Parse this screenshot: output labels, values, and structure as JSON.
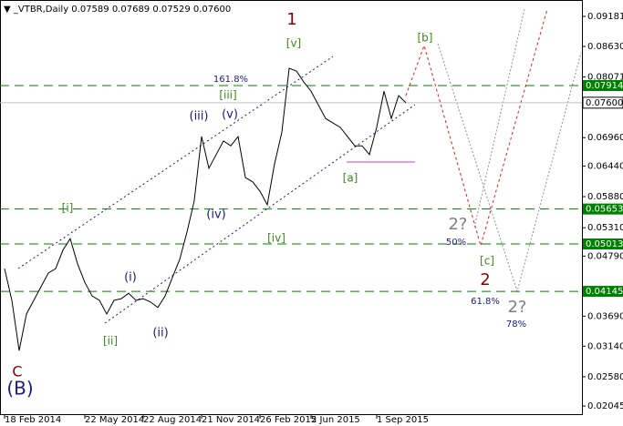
{
  "chart_data": {
    "type": "line",
    "title": "▼ _VTBR,Daily  0.07589 0.07689 0.07529 0.07600",
    "color": "#000000",
    "categories": [
      "18 Feb 2014",
      null,
      null,
      null,
      null,
      null,
      null,
      null,
      null,
      null,
      null,
      "22 May 2014",
      null,
      null,
      null,
      null,
      null,
      null,
      null,
      "22 Aug 2014",
      null,
      null,
      null,
      null,
      null,
      null,
      null,
      "21 Nov 2014",
      null,
      null,
      null,
      null,
      null,
      null,
      null,
      "26 Feb 2015",
      null,
      null,
      null,
      null,
      null,
      null,
      "2 Jun 2015",
      null,
      null,
      null,
      null,
      null,
      null,
      null,
      null,
      "1 Sep 2015",
      null,
      null,
      null,
      null
    ],
    "values": [
      0.0456,
      0.0398,
      0.0306,
      0.0373,
      0.0398,
      0.0423,
      0.0448,
      0.0456,
      0.049,
      0.0511,
      0.0465,
      0.0431,
      0.0406,
      0.0398,
      0.0373,
      0.0398,
      0.0401,
      0.0411,
      0.0398,
      0.0401,
      0.0395,
      0.0385,
      0.0406,
      0.044,
      0.0473,
      0.0523,
      0.0581,
      0.0698,
      0.064,
      0.0665,
      0.069,
      0.0681,
      0.0698,
      0.0623,
      0.0615,
      0.0598,
      0.0573,
      0.0648,
      0.0706,
      0.0823,
      0.0818,
      0.0798,
      0.0781,
      0.0756,
      0.0731,
      0.0723,
      0.0715,
      0.0698,
      0.0681,
      0.0681,
      0.0665,
      0.0715,
      0.0781,
      0.0731,
      0.0773,
      0.076
    ],
    "ylim": [
      0.01879,
      0.09481
    ],
    "yticks": [
      0.09181,
      {
        "value": 0.0863,
        "label": "0.08630"
      },
      0.08071,
      {
        "value": 0.0696,
        "label": "0.06960"
      },
      {
        "value": 0.0644,
        "label": "0.06440"
      },
      {
        "value": 0.0588,
        "label": "0.05880"
      },
      {
        "value": 0.0531,
        "label": "0.05310"
      },
      {
        "value": 0.0479,
        "label": "0.04790"
      },
      {
        "value": 0.0369,
        "label": "0.03690"
      },
      {
        "value": 0.0314,
        "label": "0.03140"
      },
      {
        "value": 0.0258,
        "label": "0.02580"
      },
      0.02045
    ],
    "levels": [
      0.07914,
      0.05653,
      0.05013,
      0.04145
    ],
    "level_color": "#008000",
    "current_price": {
      "value": 0.076,
      "label": "0.07600"
    },
    "annotations": [
      {
        "text": "1",
        "color": "#8b0000"
      },
      {
        "text": "[v]",
        "color": "#3a8a1a"
      },
      {
        "text": "[b]",
        "color": "#3a8a1a"
      },
      {
        "text": "161.8%",
        "color": "#1a1a80"
      },
      {
        "text": "[iii]",
        "color": "#3a8a1a"
      },
      {
        "text": "(iii)",
        "color": "#1a1a80"
      },
      {
        "text": "(v)",
        "color": "#1a1a80"
      },
      {
        "text": "[i]",
        "color": "#3a8a1a"
      },
      {
        "text": "(iv)",
        "color": "#1a1a80"
      },
      {
        "text": "[a]",
        "color": "#3a8a1a"
      },
      {
        "text": "2?",
        "color": "#808080"
      },
      {
        "text": "50%",
        "color": "#1a1a80"
      },
      {
        "text": "[iv]",
        "color": "#3a8a1a"
      },
      {
        "text": "[c]",
        "color": "#3a8a1a"
      },
      {
        "text": "2",
        "color": "#8b0000"
      },
      {
        "text": "61.8%",
        "color": "#1a1a80"
      },
      {
        "text": "2?",
        "color": "#808080"
      },
      {
        "text": "78%",
        "color": "#1a1a80"
      },
      {
        "text": "(i)",
        "color": "#1a1a80"
      },
      {
        "text": "[ii]",
        "color": "#3a8a1a"
      },
      {
        "text": "(ii)",
        "color": "#1a1a80"
      },
      {
        "text": "C",
        "color": "#8b0000"
      },
      {
        "text": "(B)",
        "color": "#1a1a80"
      }
    ]
  }
}
